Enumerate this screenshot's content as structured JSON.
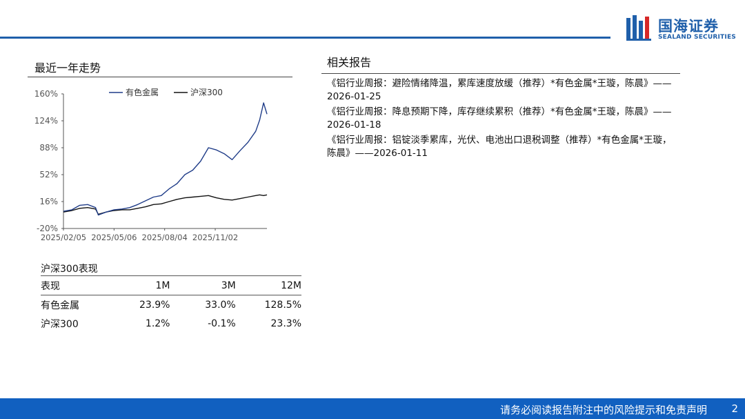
{
  "header": {
    "logo_cn": "国海证券",
    "logo_en": "SEALAND SECURITIES",
    "brand_color": "#1f5faa"
  },
  "left": {
    "trend_title": "最近一年走势",
    "performance_title": "沪深300表现"
  },
  "chart_data": {
    "type": "line",
    "title": "",
    "x_tick_labels": [
      "2025/02/05",
      "2025/05/06",
      "2025/08/04",
      "2025/11/02"
    ],
    "y_tick_labels": [
      "160%",
      "124%",
      "88%",
      "52%",
      "16%",
      "-20%"
    ],
    "ylim": [
      -20,
      160
    ],
    "grid": false,
    "legend": "top",
    "series": [
      {
        "name": "有色金属",
        "color": "#1f3c88",
        "x": [
          "2025-02-05",
          "2025-02-20",
          "2025-03-06",
          "2025-03-20",
          "2025-04-03",
          "2025-04-08",
          "2025-04-22",
          "2025-05-06",
          "2025-05-20",
          "2025-06-03",
          "2025-06-17",
          "2025-07-01",
          "2025-07-15",
          "2025-07-29",
          "2025-08-12",
          "2025-08-26",
          "2025-09-09",
          "2025-09-23",
          "2025-10-07",
          "2025-10-21",
          "2025-11-04",
          "2025-11-18",
          "2025-12-02",
          "2025-12-16",
          "2025-12-30",
          "2026-01-13",
          "2026-01-20",
          "2026-01-27",
          "2026-02-02"
        ],
        "values": [
          3,
          5,
          11,
          12,
          8,
          -2,
          2,
          5,
          6,
          8,
          12,
          17,
          22,
          24,
          33,
          40,
          52,
          58,
          70,
          88,
          85,
          80,
          72,
          84,
          95,
          110,
          125,
          148,
          133
        ]
      },
      {
        "name": "沪深300",
        "color": "#111111",
        "x": [
          "2025-02-05",
          "2025-02-20",
          "2025-03-06",
          "2025-03-20",
          "2025-04-03",
          "2025-04-08",
          "2025-04-22",
          "2025-05-06",
          "2025-05-20",
          "2025-06-03",
          "2025-06-17",
          "2025-07-01",
          "2025-07-15",
          "2025-07-29",
          "2025-08-12",
          "2025-08-26",
          "2025-09-09",
          "2025-09-23",
          "2025-10-07",
          "2025-10-21",
          "2025-11-04",
          "2025-11-18",
          "2025-12-02",
          "2025-12-16",
          "2025-12-30",
          "2026-01-13",
          "2026-01-20",
          "2026-01-27",
          "2026-02-02"
        ],
        "values": [
          2,
          4,
          7,
          8,
          6,
          -1,
          2,
          4,
          5,
          5,
          7,
          9,
          12,
          13,
          16,
          19,
          21,
          22,
          23,
          24,
          21,
          19,
          18,
          20,
          22,
          24,
          25,
          24,
          25
        ]
      }
    ]
  },
  "performance_table": {
    "headers": [
      "表现",
      "1M",
      "3M",
      "12M"
    ],
    "rows": [
      [
        "有色金属",
        "23.9%",
        "33.0%",
        "128.5%"
      ],
      [
        "沪深300",
        "1.2%",
        "-0.1%",
        "23.3%"
      ]
    ]
  },
  "right": {
    "related_title": "相关报告",
    "reports": [
      "《铝行业周报：避险情绪降温，累库速度放缓（推荐）*有色金属*王璇，陈晨》——2026-01-25",
      "《铝行业周报：降息预期下降，库存继续累积（推荐）*有色金属*王璇，陈晨》——2026-01-18",
      "《铝行业周报：铝锭淡季累库，光伏、电池出口退税调整（推荐）*有色金属*王璇，陈晨》——2026-01-11"
    ]
  },
  "footer": {
    "disclaimer": "请务必阅读报告附注中的风险提示和免责声明",
    "page_number": "2",
    "bar_color": "#1160c0"
  }
}
